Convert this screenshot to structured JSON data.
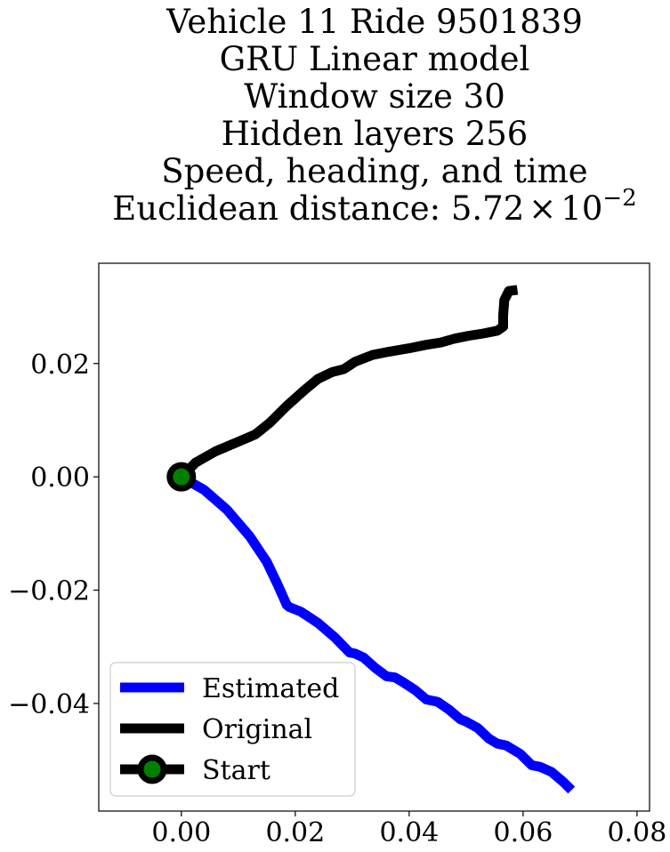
{
  "chart_data": {
    "type": "line",
    "title_lines": [
      "Vehicle 11 Ride 9501839",
      "GRU Linear model",
      "Window size 30",
      "Hidden layers 256",
      "Speed, heading, and time"
    ],
    "title_metric_prefix": "Euclidean distance: ",
    "title_metric_mantissa": "5.72",
    "title_metric_times": "×",
    "title_metric_base": "10",
    "title_metric_exponent": "−2",
    "xlabel": "",
    "ylabel": "",
    "xlim": [
      -0.0145,
      0.0822
    ],
    "ylim": [
      -0.059,
      0.0377
    ],
    "xticks": [
      {
        "value": 0.0,
        "label": "0.00"
      },
      {
        "value": 0.02,
        "label": "0.02"
      },
      {
        "value": 0.04,
        "label": "0.04"
      },
      {
        "value": 0.06,
        "label": "0.06"
      },
      {
        "value": 0.08,
        "label": "0.08"
      }
    ],
    "yticks": [
      {
        "value": 0.02,
        "label": "0.02"
      },
      {
        "value": 0.0,
        "label": "0.00"
      },
      {
        "value": -0.02,
        "label": "−0.02"
      },
      {
        "value": -0.04,
        "label": "−0.04"
      }
    ],
    "grid": false,
    "legend_position": "lower-left",
    "series": [
      {
        "name": "Estimated",
        "color": "#0000ff",
        "x": [
          0.0,
          0.004,
          0.008,
          0.012,
          0.015,
          0.017,
          0.0185,
          0.019,
          0.021,
          0.024,
          0.027,
          0.0295,
          0.0305,
          0.032,
          0.034,
          0.036,
          0.0375,
          0.039,
          0.041,
          0.043,
          0.045,
          0.047,
          0.049,
          0.05,
          0.052,
          0.054,
          0.0555,
          0.057,
          0.0595,
          0.0615,
          0.063,
          0.065,
          0.067,
          0.0685
        ],
        "y": [
          0.0,
          -0.0023,
          -0.0058,
          -0.0105,
          -0.015,
          -0.0192,
          -0.0226,
          -0.023,
          -0.0238,
          -0.0258,
          -0.0284,
          -0.031,
          -0.0312,
          -0.0319,
          -0.0337,
          -0.0352,
          -0.0354,
          -0.0363,
          -0.0376,
          -0.0393,
          -0.0397,
          -0.0411,
          -0.0428,
          -0.0432,
          -0.0443,
          -0.0462,
          -0.0471,
          -0.0474,
          -0.0489,
          -0.0509,
          -0.0512,
          -0.0521,
          -0.0538,
          -0.0553
        ]
      },
      {
        "name": "Original",
        "color": "#000000",
        "x": [
          0.0,
          0.0025,
          0.006,
          0.01,
          0.013,
          0.0155,
          0.0185,
          0.0215,
          0.024,
          0.0265,
          0.0285,
          0.0305,
          0.0335,
          0.0365,
          0.04,
          0.043,
          0.0455,
          0.048,
          0.0505,
          0.053,
          0.0555,
          0.0565,
          0.0565,
          0.0567,
          0.0575,
          0.059
        ],
        "y": [
          0.0,
          0.0025,
          0.0045,
          0.0062,
          0.0075,
          0.0095,
          0.0125,
          0.0152,
          0.0173,
          0.0185,
          0.019,
          0.0203,
          0.0215,
          0.0221,
          0.0227,
          0.0233,
          0.0237,
          0.0244,
          0.0249,
          0.0253,
          0.0258,
          0.0265,
          0.0285,
          0.0312,
          0.0328,
          0.033
        ]
      }
    ],
    "start_marker": {
      "name": "Start",
      "x": 0.0,
      "y": 0.0,
      "edge_color": "#000000",
      "face_color": "#008000"
    },
    "legend_entries": [
      "Estimated",
      "Original",
      "Start"
    ]
  }
}
